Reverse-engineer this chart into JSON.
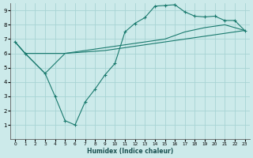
{
  "background_color": "#cceaea",
  "grid_color": "#a8d4d4",
  "line_color": "#1a7a6e",
  "xlabel": "Humidex (Indice chaleur)",
  "xlim": [
    -0.5,
    23.5
  ],
  "ylim": [
    0,
    9.5
  ],
  "xticks": [
    0,
    1,
    2,
    3,
    4,
    5,
    6,
    7,
    8,
    9,
    10,
    11,
    12,
    13,
    14,
    15,
    16,
    17,
    18,
    19,
    20,
    21,
    22,
    23
  ],
  "yticks": [
    1,
    2,
    3,
    4,
    5,
    6,
    7,
    8,
    9
  ],
  "line1_x": [
    0,
    1,
    2,
    3,
    4,
    5,
    6,
    7,
    8,
    9,
    10,
    11,
    12,
    13,
    14,
    15,
    16,
    17,
    18,
    19,
    20,
    21,
    22,
    23
  ],
  "line1_y": [
    6.8,
    6.0,
    6.0,
    6.0,
    6.0,
    6.0,
    6.05,
    6.1,
    6.15,
    6.2,
    6.3,
    6.4,
    6.5,
    6.6,
    6.7,
    6.8,
    6.9,
    7.0,
    7.1,
    7.2,
    7.3,
    7.4,
    7.5,
    7.6
  ],
  "line2_x": [
    0,
    1,
    3,
    5,
    7,
    9,
    11,
    13,
    15,
    17,
    19,
    21,
    23
  ],
  "line2_y": [
    6.8,
    6.0,
    4.6,
    6.0,
    6.2,
    6.4,
    6.6,
    6.8,
    7.0,
    7.5,
    7.8,
    8.0,
    7.6
  ],
  "line3_x": [
    0,
    1,
    3,
    4,
    5,
    6,
    7,
    8,
    9,
    10,
    11,
    12,
    13,
    14,
    15,
    16,
    17,
    18,
    19,
    20,
    21,
    22,
    23
  ],
  "line3_y": [
    6.8,
    6.0,
    4.6,
    3.0,
    1.3,
    1.0,
    2.6,
    3.5,
    4.5,
    5.3,
    7.5,
    8.1,
    8.5,
    9.3,
    9.35,
    9.4,
    8.9,
    8.6,
    8.55,
    8.6,
    8.3,
    8.3,
    7.6
  ]
}
